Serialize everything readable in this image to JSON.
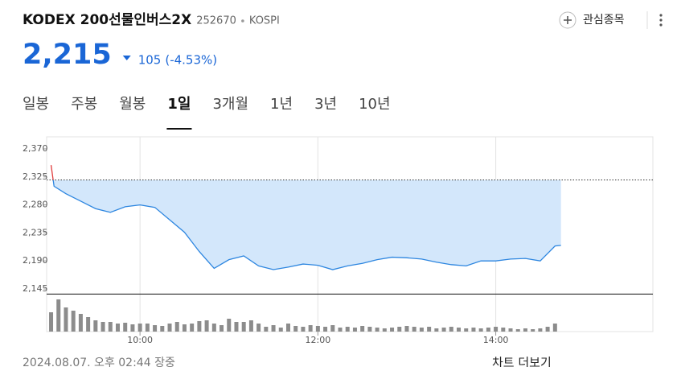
{
  "header": {
    "title": "KODEX 200선물인버스2X",
    "code": "252670",
    "market": "KOSPI",
    "watch_button": "관심종목"
  },
  "quote": {
    "price": "2,215",
    "change": "105",
    "change_pct": "(-4.53%)",
    "color": "#1a66d6"
  },
  "tabs": [
    "일봉",
    "주봉",
    "월봉",
    "1일",
    "3개월",
    "1년",
    "3년",
    "10년"
  ],
  "active_tab": 3,
  "chart_data": [
    {
      "type": "line",
      "x": [
        540,
        542,
        550,
        560,
        570,
        580,
        590,
        600,
        610,
        620,
        630,
        640,
        650,
        660,
        670,
        680,
        690,
        700,
        710,
        720,
        730,
        740,
        750,
        760,
        770,
        780,
        790,
        800,
        810,
        820,
        830,
        840,
        850,
        860,
        870,
        880,
        884
      ],
      "values": [
        2344,
        2310,
        2298,
        2286,
        2274,
        2268,
        2277,
        2280,
        2276,
        2256,
        2236,
        2205,
        2178,
        2192,
        2198,
        2182,
        2176,
        2180,
        2185,
        2183,
        2176,
        2182,
        2186,
        2192,
        2196,
        2195,
        2193,
        2188,
        2184,
        2182,
        2190,
        2190,
        2193,
        2194,
        2190,
        2214,
        2215
      ],
      "color": "#2d86e0",
      "up_color": "#e03c3c",
      "fill": "#d3e7fb",
      "reference": 2320,
      "xlim": [
        537,
        946
      ],
      "ylim": [
        2138,
        2385
      ],
      "yticks": [
        {
          "value": 2370,
          "label": "2,370"
        },
        {
          "value": 2325,
          "label": "2,325"
        },
        {
          "value": 2280,
          "label": "2,280"
        },
        {
          "value": 2235,
          "label": "2,235"
        },
        {
          "value": 2190,
          "label": "2,190"
        },
        {
          "value": 2145,
          "label": "2,145"
        }
      ],
      "xticks": [
        {
          "value": 600,
          "label": "10:00"
        },
        {
          "value": 720,
          "label": "12:00"
        },
        {
          "value": 840,
          "label": "14:00"
        }
      ]
    },
    {
      "type": "bar",
      "x": [
        540,
        545,
        550,
        555,
        560,
        565,
        570,
        575,
        580,
        585,
        590,
        595,
        600,
        605,
        610,
        615,
        620,
        625,
        630,
        635,
        640,
        645,
        650,
        655,
        660,
        665,
        670,
        675,
        680,
        685,
        690,
        695,
        700,
        705,
        710,
        715,
        720,
        725,
        730,
        735,
        740,
        745,
        750,
        755,
        760,
        765,
        770,
        775,
        780,
        785,
        790,
        795,
        800,
        805,
        810,
        815,
        820,
        825,
        830,
        835,
        840,
        845,
        850,
        855,
        860,
        865,
        870,
        875,
        880
      ],
      "values": [
        24,
        40,
        30,
        26,
        22,
        18,
        14,
        12,
        12,
        10,
        11,
        9,
        10,
        10,
        8,
        7,
        10,
        12,
        9,
        10,
        13,
        14,
        10,
        8,
        16,
        12,
        12,
        14,
        10,
        6,
        8,
        5,
        10,
        7,
        6,
        8,
        7,
        6,
        8,
        5,
        6,
        5,
        7,
        6,
        5,
        4,
        5,
        6,
        7,
        6,
        5,
        6,
        4,
        5,
        6,
        5,
        4,
        5,
        4,
        5,
        6,
        5,
        4,
        3,
        4,
        3,
        4,
        6,
        10
      ],
      "color": "#8c8c8c",
      "xlim": [
        537,
        946
      ],
      "ylim": [
        0,
        45
      ]
    }
  ],
  "footer": {
    "timestamp": "2024.08.07. 오후 02:44 장중",
    "more": "차트 더보기"
  }
}
